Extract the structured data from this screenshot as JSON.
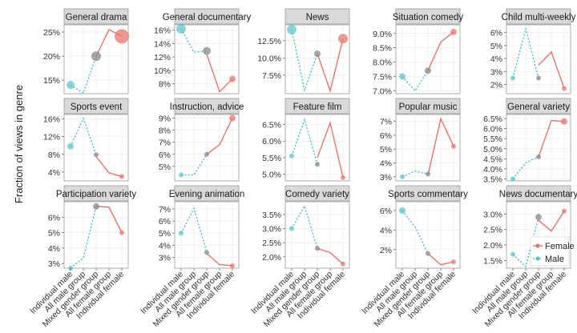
{
  "chart_data": {
    "type": "line",
    "ylabel": "Fraction of views in genre",
    "categories": [
      "Individual male",
      "All male group",
      "Mixed gender group",
      "All female group",
      "Individual female"
    ],
    "legend": {
      "placement": "bottom-right, inside last panel",
      "entries": [
        {
          "name": "Female",
          "color": "#E8756C",
          "style": "solid"
        },
        {
          "name": "Male",
          "color": "#52C3C7",
          "style": "dotted"
        }
      ]
    },
    "colors": {
      "female": "#E8756C",
      "male": "#52C3C7",
      "mixed_point": "#888888",
      "strip_bg": "#d9d9d9",
      "grid": "#ebebeb"
    },
    "panels": [
      {
        "title": "General drama",
        "ylim": [
          12.2,
          26.5
        ],
        "ticks": [
          15,
          20,
          25
        ],
        "tick_labels": [
          "15%",
          "20%",
          "25%"
        ],
        "male": [
          14,
          12.3,
          20
        ],
        "female": [
          20,
          25.5,
          24.1
        ],
        "sizes": [
          5,
          0,
          6,
          0,
          9
        ]
      },
      {
        "title": "General documentary",
        "ylim": [
          6.5,
          16.8
        ],
        "ticks": [
          8,
          10,
          12,
          14,
          16
        ],
        "tick_labels": [
          "8%",
          "10%",
          "12%",
          "14%",
          "16%"
        ],
        "male": [
          16.2,
          12.7,
          12.9
        ],
        "female": [
          12.4,
          6.8,
          8.7
        ],
        "sizes": [
          6,
          0,
          5,
          0,
          4
        ]
      },
      {
        "title": "News",
        "ylim": [
          4.8,
          14.8
        ],
        "ticks": [
          7.5,
          10,
          12.5
        ],
        "tick_labels": [
          "7.5%",
          "10.0%",
          "12.5%"
        ],
        "male": [
          14.1,
          5.3,
          10.6
        ],
        "female": [
          10.6,
          5.2,
          12.8
        ],
        "sizes": [
          6,
          0,
          4,
          0,
          6
        ]
      },
      {
        "title": "Situation comedy",
        "ylim": [
          6.9,
          9.3
        ],
        "ticks": [
          7,
          7.5,
          8,
          8.5,
          9
        ],
        "tick_labels": [
          "7.0%",
          "7.5%",
          "8.0%",
          "8.5%",
          "9.0%"
        ],
        "male": [
          7.5,
          7,
          7.7
        ],
        "female": [
          7.7,
          8.7,
          9.05
        ],
        "sizes": [
          4,
          0,
          4,
          0,
          4
        ]
      },
      {
        "title": "Child multi-weekly",
        "ylim": [
          1.3,
          6.6
        ],
        "ticks": [
          2,
          3,
          4,
          5,
          6
        ],
        "tick_labels": [
          "2%",
          "3%",
          "4%",
          "5%",
          "6%"
        ],
        "male": [
          2.5,
          6.3,
          2.5
        ],
        "female": [
          3.5,
          4.5,
          1.7
        ],
        "sizes": [
          3,
          0,
          3,
          0,
          3
        ]
      },
      {
        "title": "Sports event",
        "ylim": [
          2,
          17
        ],
        "ticks": [
          4,
          8,
          12,
          16
        ],
        "tick_labels": [
          "4%",
          "8%",
          "12%",
          "16%"
        ],
        "male": [
          9.8,
          16.1,
          7.9
        ],
        "female": [
          7.5,
          3.8,
          3
        ],
        "sizes": [
          4,
          0,
          3,
          0,
          3
        ]
      },
      {
        "title": "Instruction, advice",
        "ylim": [
          3.8,
          9.3
        ],
        "ticks": [
          5,
          6,
          7,
          8,
          9
        ],
        "tick_labels": [
          "5%",
          "6%",
          "7%",
          "8%",
          "9%"
        ],
        "male": [
          4.3,
          4.3,
          6
        ],
        "female": [
          6,
          6.8,
          9
        ],
        "sizes": [
          3,
          0,
          3,
          0,
          4
        ]
      },
      {
        "title": "Feature film",
        "ylim": [
          4.8,
          6.8
        ],
        "ticks": [
          5,
          5.5,
          6,
          6.5
        ],
        "tick_labels": [
          "5.0%",
          "5.5%",
          "6.0%",
          "6.5%"
        ],
        "male": [
          5.55,
          6.65,
          5.3
        ],
        "female": [
          5.5,
          6.55,
          4.9
        ],
        "sizes": [
          3,
          0,
          3,
          0,
          3
        ]
      },
      {
        "title": "Popular music",
        "ylim": [
          2.7,
          7.5
        ],
        "ticks": [
          3,
          4,
          5,
          6,
          7
        ],
        "tick_labels": [
          "3%",
          "4%",
          "5%",
          "6%",
          "7%"
        ],
        "male": [
          3,
          3.4,
          3.2
        ],
        "female": [
          3.1,
          7.2,
          5.2
        ],
        "sizes": [
          3,
          0,
          3,
          0,
          3
        ]
      },
      {
        "title": "General variety",
        "ylim": [
          3.4,
          6.7
        ],
        "ticks": [
          3.5,
          4,
          4.5,
          5,
          5.5,
          6,
          6.5
        ],
        "tick_labels": [
          "3.5%",
          "4.0%",
          "4.5%",
          "5.0%",
          "5.5%",
          "6.0%",
          "6.5%"
        ],
        "male": [
          3.5,
          4.3,
          4.6
        ],
        "female": [
          4.6,
          6.4,
          6.35
        ],
        "sizes": [
          3,
          0,
          3,
          0,
          4
        ]
      },
      {
        "title": "Participation variety",
        "ylim": [
          2.7,
          7
        ],
        "ticks": [
          3,
          4,
          5,
          6
        ],
        "tick_labels": [
          "3%",
          "4%",
          "5%",
          "6%"
        ],
        "male": [
          2.7,
          3.35,
          6.7
        ],
        "female": [
          6.7,
          6.65,
          5
        ],
        "sizes": [
          3,
          0,
          4,
          0,
          3
        ]
      },
      {
        "title": "Evening animation",
        "ylim": [
          2.1,
          7.6
        ],
        "ticks": [
          3,
          4,
          5,
          6,
          7
        ],
        "tick_labels": [
          "3%",
          "4%",
          "5%",
          "6%",
          "7%"
        ],
        "male": [
          5,
          7.05,
          3.4
        ],
        "female": [
          3.3,
          2.4,
          2.3
        ],
        "sizes": [
          3,
          0,
          3,
          0,
          3
        ]
      },
      {
        "title": "Comedy variety",
        "ylim": [
          1.6,
          3.95
        ],
        "ticks": [
          2,
          2.5,
          3,
          3.5
        ],
        "tick_labels": [
          "2.0%",
          "2.5%",
          "3.0%",
          "3.5%"
        ],
        "male": [
          3,
          3.8,
          2.3
        ],
        "female": [
          2.3,
          2.15,
          1.75
        ],
        "sizes": [
          3,
          0,
          3,
          0,
          3
        ]
      },
      {
        "title": "Sports commentary",
        "ylim": [
          0.1,
          6.9
        ],
        "ticks": [
          2,
          4,
          6
        ],
        "tick_labels": [
          "2%",
          "4%",
          "6%"
        ],
        "male": [
          6,
          4.3,
          1.6
        ],
        "female": [
          1.6,
          0.45,
          0.75
        ],
        "sizes": [
          4,
          0,
          3,
          0,
          3
        ]
      },
      {
        "title": "News documentary",
        "ylim": [
          1.25,
          3.4
        ],
        "ticks": [
          1.5,
          2,
          2.5,
          3
        ],
        "tick_labels": [
          "1.5%",
          "2.0%",
          "2.5%",
          "3.0%"
        ],
        "male": [
          1.7,
          1.3,
          2.9
        ],
        "female": [
          2.8,
          2.45,
          3.1
        ],
        "sizes": [
          3,
          0,
          4,
          0,
          3
        ]
      }
    ]
  }
}
